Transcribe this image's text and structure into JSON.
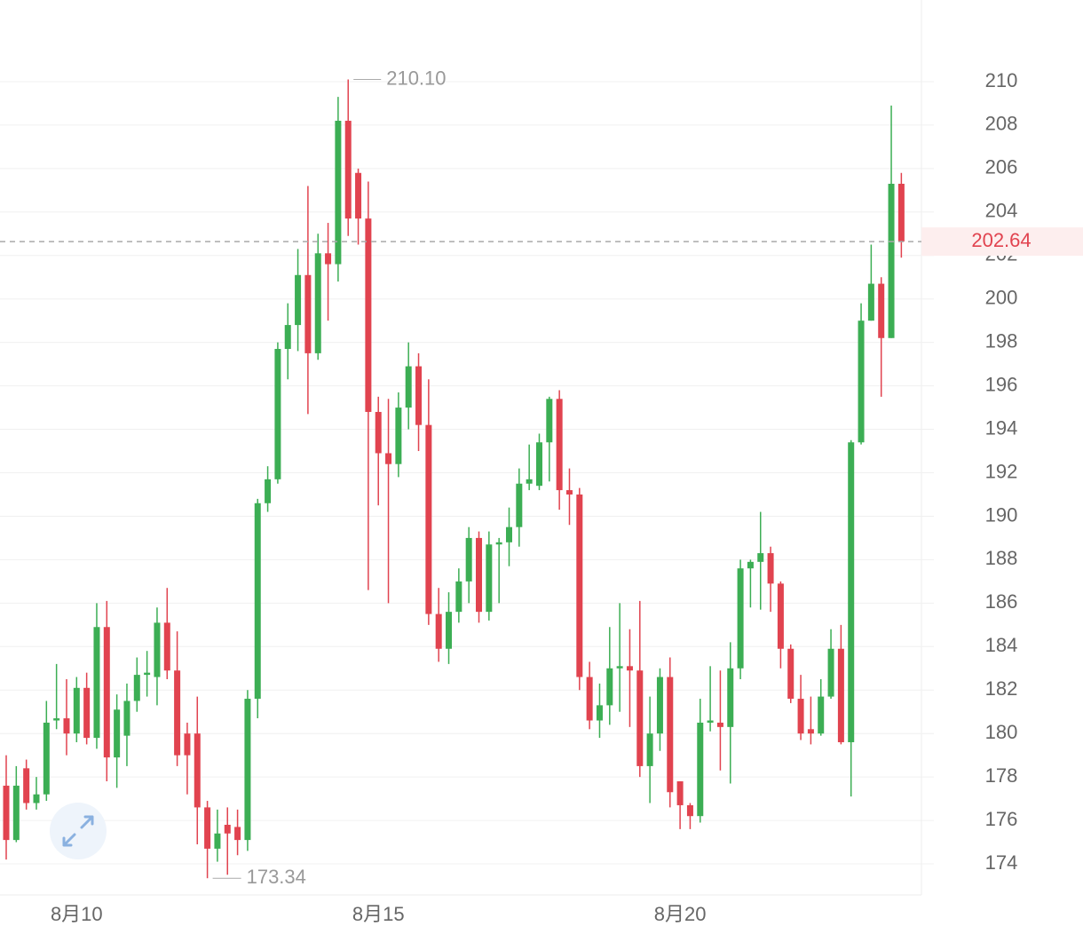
{
  "chart_data": {
    "type": "candlestick",
    "categories": [
      null,
      null,
      null,
      null,
      null,
      null,
      null,
      "8月10",
      null,
      null,
      null,
      null,
      null,
      null,
      null,
      null,
      null,
      null,
      null,
      null,
      null,
      null,
      null,
      null,
      null,
      null,
      null,
      null,
      null,
      null,
      null,
      null,
      null,
      null,
      null,
      null,
      null,
      "8月15",
      null,
      null,
      null,
      null,
      null,
      null,
      null,
      null,
      null,
      null,
      null,
      null,
      null,
      null,
      null,
      null,
      null,
      null,
      null,
      null,
      null,
      null,
      null,
      null,
      null,
      null,
      null,
      null,
      null,
      "8月20",
      null,
      null,
      null,
      null,
      null,
      null,
      null,
      null,
      null,
      null,
      null,
      null,
      null,
      null,
      null,
      null,
      null,
      null,
      null,
      null,
      null,
      null
    ],
    "open": [
      177.6,
      175.1,
      178.4,
      176.8,
      177.2,
      180.6,
      180.7,
      180.0,
      182.1,
      179.8,
      184.9,
      178.9,
      179.9,
      181.5,
      182.7,
      182.6,
      185.1,
      182.9,
      180.0,
      180.0,
      176.6,
      174.7,
      175.8,
      175.7,
      175.1,
      181.6,
      190.6,
      191.7,
      197.7,
      198.8,
      201.1,
      197.5,
      202.1,
      201.6,
      208.2,
      205.8,
      203.7,
      194.8,
      192.9,
      192.4,
      195.0,
      196.9,
      194.2,
      185.5,
      183.9,
      185.6,
      187.0,
      189.0,
      185.6,
      188.7,
      188.8,
      189.5,
      191.5,
      191.4,
      193.4,
      195.4,
      191.2,
      191.0,
      182.6,
      180.6,
      181.3,
      183.0,
      183.1,
      182.9,
      178.5,
      180.0,
      182.6,
      177.8,
      176.7,
      176.2,
      180.5,
      180.5,
      180.3,
      183.0,
      187.6,
      187.9,
      188.3,
      186.9,
      183.9,
      181.6,
      180.2,
      180.0,
      181.7,
      183.9,
      179.6,
      193.4,
      199.0,
      200.7,
      198.2,
      205.3
    ],
    "high": [
      179.0,
      178.5,
      178.8,
      178.0,
      181.5,
      183.2,
      182.5,
      182.6,
      182.8,
      186.0,
      186.1,
      181.8,
      182.3,
      183.5,
      183.8,
      185.8,
      186.7,
      184.7,
      180.5,
      181.7,
      176.9,
      176.5,
      176.6,
      176.5,
      182.0,
      190.8,
      192.3,
      198.0,
      199.8,
      202.3,
      205.2,
      203.0,
      203.5,
      209.3,
      210.1,
      206.0,
      205.4,
      195.5,
      195.4,
      195.7,
      198.0,
      197.5,
      196.3,
      186.7,
      186.5,
      187.6,
      189.5,
      189.3,
      189.3,
      189.0,
      190.4,
      192.2,
      193.3,
      193.8,
      195.5,
      195.8,
      192.2,
      191.3,
      183.3,
      182.3,
      184.9,
      186.0,
      184.8,
      186.1,
      181.7,
      183.0,
      183.5,
      177.8,
      176.8,
      181.6,
      183.1,
      182.9,
      184.2,
      188.0,
      188.0,
      190.2,
      188.6,
      187.0,
      184.1,
      182.7,
      181.7,
      182.5,
      184.8,
      185.0,
      193.5,
      199.8,
      202.5,
      201.0,
      208.9,
      205.8
    ],
    "low": [
      174.2,
      175.0,
      176.5,
      176.5,
      176.9,
      180.2,
      179.0,
      179.6,
      179.5,
      179.3,
      177.8,
      177.5,
      178.5,
      181.0,
      181.7,
      181.3,
      182.5,
      178.5,
      177.2,
      174.9,
      173.34,
      174.1,
      173.5,
      174.4,
      174.6,
      180.7,
      190.2,
      191.5,
      196.3,
      197.6,
      194.7,
      197.2,
      199.0,
      200.8,
      202.9,
      202.5,
      186.6,
      190.5,
      186.0,
      191.8,
      194.0,
      193.0,
      185.0,
      183.3,
      183.2,
      185.1,
      186.0,
      185.1,
      185.2,
      186.0,
      187.7,
      188.6,
      191.2,
      191.2,
      191.6,
      190.3,
      189.6,
      182.0,
      180.2,
      179.8,
      180.4,
      181.0,
      180.3,
      178.0,
      176.8,
      179.2,
      176.6,
      175.6,
      175.6,
      175.9,
      180.1,
      178.3,
      177.7,
      182.5,
      185.8,
      185.7,
      185.6,
      183.0,
      181.4,
      179.7,
      179.5,
      179.9,
      181.6,
      179.5,
      177.1,
      193.3,
      199.0,
      195.5,
      198.2,
      201.9
    ],
    "close": [
      175.1,
      177.6,
      176.8,
      177.2,
      180.5,
      180.7,
      180.0,
      182.1,
      179.8,
      184.9,
      178.9,
      181.1,
      181.5,
      182.7,
      182.8,
      185.1,
      182.9,
      179.0,
      179.0,
      176.6,
      174.7,
      175.4,
      175.4,
      175.1,
      181.6,
      190.6,
      191.7,
      197.7,
      198.8,
      201.1,
      197.5,
      202.1,
      201.6,
      208.2,
      203.7,
      203.7,
      194.8,
      192.9,
      192.4,
      195.0,
      196.9,
      194.2,
      185.5,
      183.9,
      185.6,
      187.0,
      189.0,
      185.6,
      188.7,
      188.8,
      189.5,
      191.5,
      191.7,
      193.4,
      195.4,
      191.2,
      191.0,
      182.6,
      180.6,
      181.3,
      183.0,
      183.1,
      182.9,
      178.5,
      180.0,
      182.6,
      177.3,
      176.7,
      176.2,
      180.5,
      180.6,
      180.3,
      183.0,
      187.6,
      187.9,
      188.3,
      186.9,
      183.9,
      181.6,
      180.0,
      180.0,
      181.7,
      183.9,
      179.6,
      193.4,
      199.0,
      200.7,
      198.2,
      205.3,
      202.64
    ],
    "up_color": "#3cae54",
    "down_color": "#e1434f",
    "ylim": [
      172.6,
      213.3
    ],
    "yticks": [
      174,
      176,
      178,
      180,
      182,
      184,
      186,
      188,
      190,
      192,
      194,
      196,
      198,
      200,
      202,
      204,
      206,
      208,
      210
    ],
    "grid": true,
    "last_price": 202.64,
    "high_label": {
      "value": 210.1,
      "label": "210.10"
    },
    "low_label": {
      "value": 173.34,
      "label": "173.34"
    }
  }
}
